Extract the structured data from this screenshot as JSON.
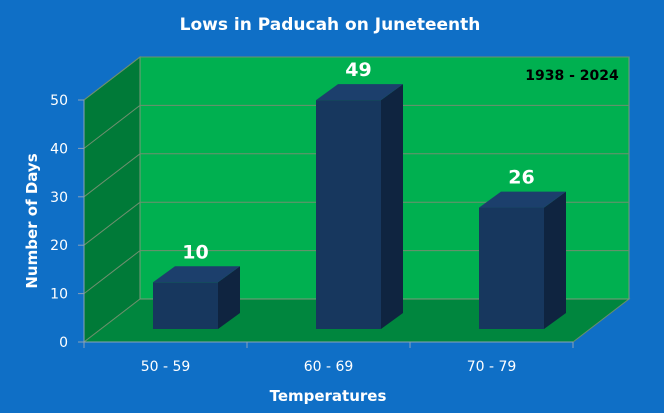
{
  "chart_data": {
    "type": "bar",
    "title": "Lows in Paducah on Juneteenth",
    "annotation": "1938 - 2024",
    "xlabel": "Temperatures",
    "ylabel": "Number of Days",
    "categories": [
      "50 - 59",
      "60 - 69",
      "70 - 79"
    ],
    "values": [
      10,
      49,
      26
    ],
    "ylim": [
      0,
      50
    ],
    "yticks": [
      "0",
      "10",
      "20",
      "30",
      "40",
      "50"
    ],
    "grid": true,
    "style": "3d",
    "colors": {
      "background": "#0f6fc6",
      "back_wall": "#00b050",
      "side_wall": "#007a38",
      "floor": "#00863e",
      "bar_front": "#17375e",
      "bar_side": "#0f2440",
      "bar_top": "#1c3f6c",
      "label_text": "#ffffff",
      "annotation_text": "#000000"
    }
  }
}
